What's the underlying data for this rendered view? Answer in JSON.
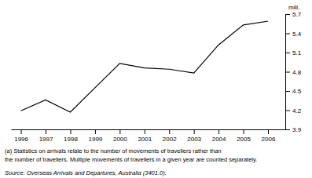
{
  "chart_data": {
    "type": "line",
    "x": [
      1996,
      1997,
      1998,
      1999,
      2000,
      2001,
      2002,
      2003,
      2004,
      2005,
      2006
    ],
    "values": [
      4.19,
      4.36,
      4.17,
      4.55,
      4.93,
      4.86,
      4.84,
      4.78,
      5.22,
      5.53,
      5.59
    ],
    "color": "#000000",
    "xlim": [
      1995.6,
      2006.7
    ],
    "xticks": [
      1996,
      1997,
      1998,
      1999,
      2000,
      2001,
      2002,
      2003,
      2004,
      2005,
      2006
    ],
    "ylim": [
      3.9,
      5.7
    ],
    "yticks": [
      3.9,
      4.2,
      4.5,
      4.8,
      5.1,
      5.4,
      5.7
    ],
    "ylabel": "mill.",
    "annotations": [
      "(a) Statistics on arrivals relate to the number of movements of travellers rather than",
      "the number of travellers.  Multiple movements of travellers in a given year are counted separately."
    ],
    "source": "Source:  Overseas Arrivals and Departures, Australia (3401.0)."
  }
}
